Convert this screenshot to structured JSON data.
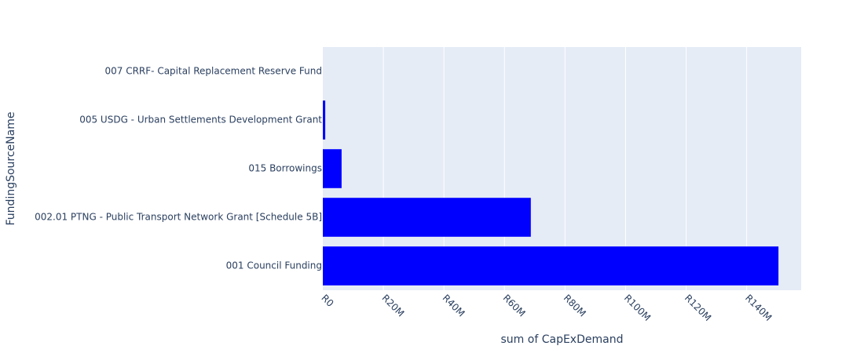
{
  "chart_data": {
    "type": "bar",
    "orientation": "horizontal",
    "categories": [
      "001 Council Funding",
      "002.01 PTNG - Public Transport Network Grant [Schedule 5B]",
      "015 Borrowings",
      "005 USDG - Urban Settlements Development Grant",
      "007 CRRF- Capital Replacement Reserve Fund"
    ],
    "values": [
      150500000,
      68700000,
      6200000,
      800000,
      0
    ],
    "bar_color": "#0000ff",
    "xlabel": "sum of CapExDemand",
    "ylabel": "FundingSourceName",
    "xlim": [
      0,
      158000000
    ],
    "x_ticks": [
      0,
      20000000,
      40000000,
      60000000,
      80000000,
      100000000,
      120000000,
      140000000
    ],
    "x_tick_labels": [
      "R0",
      "R20M",
      "R40M",
      "R60M",
      "R80M",
      "R100M",
      "R120M",
      "R140M"
    ],
    "grid": true,
    "plot_background": "#e5ecf6",
    "grid_color": "#ffffff",
    "text_color": "#2a3f5f"
  }
}
